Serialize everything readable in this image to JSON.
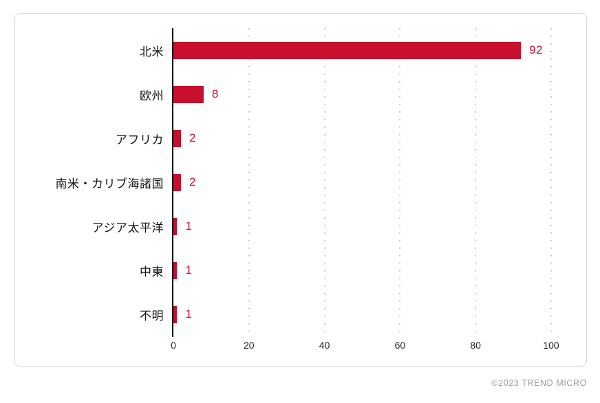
{
  "chart_data": {
    "type": "bar",
    "orientation": "horizontal",
    "title": "",
    "xlabel": "",
    "ylabel": "",
    "categories": [
      "北米",
      "欧州",
      "アフリカ",
      "南米・カリブ海諸国",
      "アジア太平洋",
      "中東",
      "不明"
    ],
    "values": [
      92,
      8,
      2,
      2,
      1,
      1,
      1
    ],
    "xlim": [
      0,
      100
    ],
    "x_ticks": [
      0,
      20,
      40,
      60,
      80,
      100
    ],
    "grid": "vertical-dotted",
    "legend": "none",
    "bar_color": "#c8102e",
    "value_label_color": "#c8102e",
    "axis_line_color": "#000000",
    "gridline_color": "#bcbcbc"
  },
  "footer": {
    "copyright": "©2023 TREND MICRO"
  }
}
